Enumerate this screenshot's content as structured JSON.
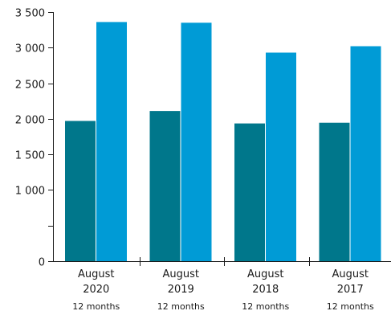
{
  "chart_data": {
    "type": "bar",
    "categories": [
      "August 2020",
      "August 2019",
      "August 2018",
      "August 2017"
    ],
    "category_labels": [
      {
        "line1": "August",
        "line2": "2020",
        "period": "12 months"
      },
      {
        "line1": "August",
        "line2": "2019",
        "period": "12 months"
      },
      {
        "line1": "August",
        "line2": "2018",
        "period": "12 months"
      },
      {
        "line1": "August",
        "line2": "2017",
        "period": "12 months"
      }
    ],
    "series": [
      {
        "values": [
          1970,
          2110,
          1935,
          1945
        ],
        "color": "#00778b"
      },
      {
        "values": [
          3360,
          3350,
          2930,
          3020
        ],
        "color": "#009bd6"
      }
    ],
    "ylim": [
      0,
      3500
    ],
    "yticks": [
      0,
      500,
      1000,
      1500,
      2000,
      2500,
      3000,
      3500
    ],
    "ytick_labels": [
      "0",
      "",
      "1 000",
      "1 500",
      "2 000",
      "2 500",
      "3 000",
      "3 500"
    ],
    "grid": false,
    "legend": "none",
    "title": "",
    "xlabel": "",
    "ylabel": ""
  }
}
